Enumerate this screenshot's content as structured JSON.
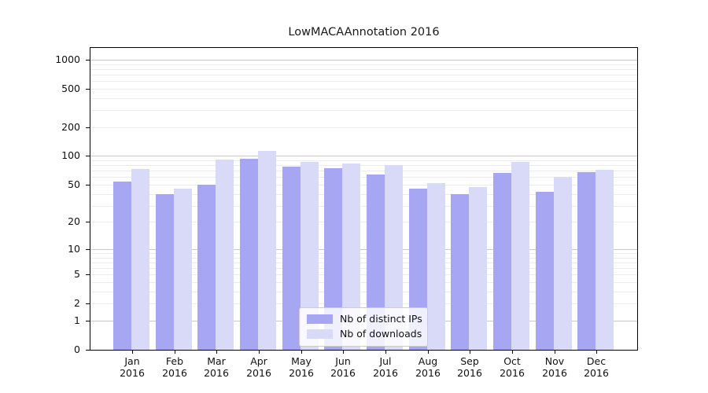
{
  "title": "LowMACAAnnotation 2016",
  "colors": {
    "distinct_ips": "#a6a6f2",
    "downloads": "#d9d9f8",
    "grid_minor": "#ebebeb",
    "grid_major": "#c9c9c9",
    "axis": "#000000",
    "legend_border": "#cccccc"
  },
  "chart_data": {
    "type": "bar",
    "title": "LowMACAAnnotation 2016",
    "categories": [
      "Jan",
      "Feb",
      "Mar",
      "Apr",
      "May",
      "Jun",
      "Jul",
      "Aug",
      "Sep",
      "Oct",
      "Nov",
      "Dec"
    ],
    "category_year": "2016",
    "series": [
      {
        "name": "Nb of distinct IPs",
        "color": "#a6a6f2",
        "values": [
          54,
          40,
          50,
          93,
          77,
          75,
          64,
          45,
          40,
          66,
          42,
          68
        ]
      },
      {
        "name": "Nb of downloads",
        "color": "#d9d9f8",
        "values": [
          73,
          45,
          91,
          113,
          87,
          84,
          80,
          52,
          47,
          87,
          60,
          72
        ]
      }
    ],
    "y_scale": "log10(value+1)",
    "y_ticks": [
      0,
      1,
      2,
      5,
      10,
      20,
      50,
      100,
      200,
      500,
      1000
    ],
    "grid_major": [
      1,
      10,
      100,
      1000
    ],
    "grid_minor": [
      2,
      3,
      4,
      5,
      6,
      7,
      8,
      9,
      20,
      30,
      40,
      50,
      60,
      70,
      80,
      90,
      200,
      300,
      400,
      500,
      600,
      700,
      800,
      900
    ],
    "ylim": [
      0,
      1300
    ],
    "grid": "on",
    "legend_position": "lower center",
    "xlabel": "",
    "ylabel": ""
  },
  "legend": {
    "items": [
      {
        "label": "Nb of distinct IPs"
      },
      {
        "label": "Nb of downloads"
      }
    ]
  }
}
